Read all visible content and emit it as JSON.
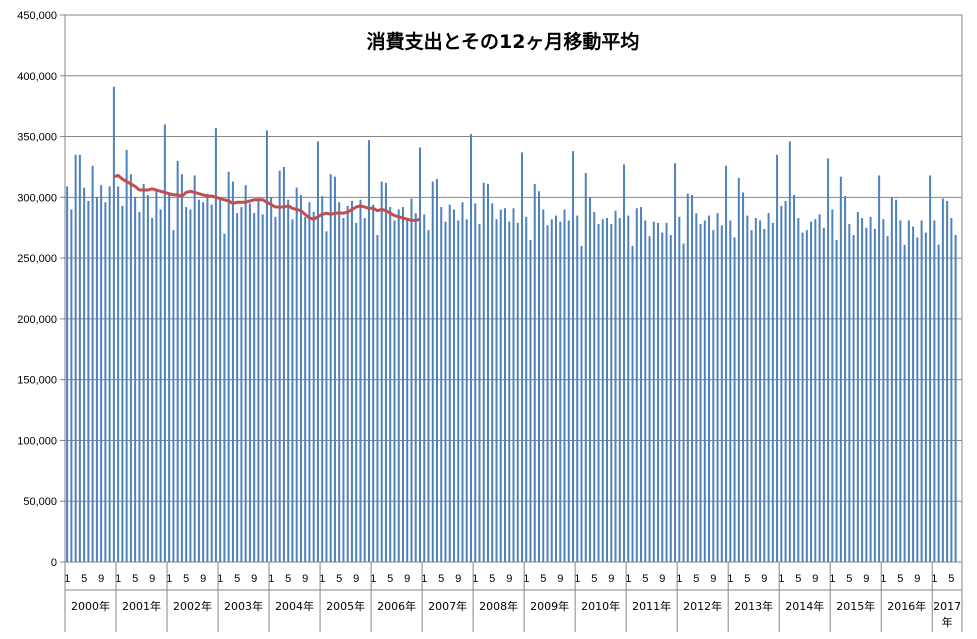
{
  "chart_data": {
    "type": "bar",
    "title": "消費支出とその12ヶ月移動平均",
    "xlabel": "",
    "ylabel": "",
    "ylim": [
      0,
      450000
    ],
    "y_ticks": [
      "0",
      "50,000",
      "100,000",
      "150,000",
      "200,000",
      "250,000",
      "300,000",
      "350,000",
      "400,000",
      "450,000"
    ],
    "grid": true,
    "legend": "none",
    "x_month_labels": [
      "1",
      "5",
      "9"
    ],
    "years": [
      "2000年",
      "2001年",
      "2002年",
      "2003年",
      "2004年",
      "2005年",
      "2006年",
      "2007年",
      "2008年",
      "2009年",
      "2010年",
      "2011年",
      "2012年",
      "2013年",
      "2014年",
      "2015年",
      "2016年",
      "2017年"
    ],
    "series": [
      {
        "kind": "bar",
        "color": "#4f81bd",
        "values": [
          309000,
          290000,
          335000,
          335000,
          308000,
          297000,
          326000,
          300000,
          310000,
          296000,
          309000,
          391000,
          309000,
          293000,
          339000,
          319000,
          300000,
          288000,
          311000,
          302000,
          283000,
          305000,
          290000,
          360000,
          304000,
          273000,
          330000,
          319000,
          292000,
          290000,
          318000,
          298000,
          296000,
          303000,
          294000,
          357000,
          298000,
          270000,
          321000,
          313000,
          287000,
          292000,
          310000,
          295000,
          287000,
          298000,
          286000,
          355000,
          300000,
          284000,
          322000,
          325000,
          298000,
          282000,
          308000,
          302000,
          284000,
          296000,
          288000,
          346000,
          301000,
          272000,
          319000,
          317000,
          296000,
          283000,
          293000,
          297000,
          279000,
          298000,
          283000,
          347000,
          294000,
          269000,
          313000,
          312000,
          292000,
          281000,
          290000,
          292000,
          282000,
          299000,
          287000,
          341000,
          286000,
          273000,
          313000,
          315000,
          292000,
          280000,
          294000,
          290000,
          281000,
          296000,
          282000,
          352000,
          295000,
          278000,
          312000,
          311000,
          295000,
          282000,
          290000,
          291000,
          280000,
          291000,
          279000,
          337000,
          284000,
          265000,
          311000,
          305000,
          290000,
          277000,
          282000,
          285000,
          280000,
          290000,
          281000,
          338000,
          285000,
          260000,
          320000,
          300000,
          288000,
          278000,
          282000,
          283000,
          278000,
          289000,
          283000,
          327000,
          285000,
          260000,
          291000,
          292000,
          281000,
          268000,
          280000,
          279000,
          271000,
          279000,
          269000,
          328000,
          284000,
          262000,
          303000,
          302000,
          287000,
          278000,
          281000,
          285000,
          273000,
          287000,
          277000,
          326000,
          281000,
          267000,
          316000,
          304000,
          285000,
          273000,
          283000,
          281000,
          274000,
          287000,
          279000,
          335000,
          293000,
          297000,
          346000,
          302000,
          283000,
          271000,
          273000,
          280000,
          282000,
          286000,
          275000,
          332000,
          290000,
          265000,
          317000,
          301000,
          278000,
          269000,
          288000,
          283000,
          275000,
          284000,
          274000,
          318000,
          282000,
          268000,
          300000,
          298000,
          281000,
          261000,
          281000,
          276000,
          267000,
          281000,
          271000,
          318000,
          281000,
          261000,
          299000,
          297000,
          283000,
          269000
        ]
      },
      {
        "kind": "line",
        "color": "#c0504d",
        "start_index": 11,
        "values": [
          317000,
          318000,
          315000,
          313000,
          311000,
          309000,
          306000,
          306000,
          306000,
          307000,
          306000,
          305000,
          304000,
          303000,
          302000,
          302000,
          301000,
          304000,
          305000,
          304000,
          303000,
          302000,
          301000,
          301000,
          300000,
          299000,
          298000,
          297000,
          295000,
          296000,
          296000,
          296000,
          297000,
          298000,
          298000,
          298000,
          296000,
          294000,
          292000,
          292000,
          292000,
          293000,
          291000,
          290000,
          289000,
          286000,
          283000,
          282000,
          284000,
          286000,
          287000,
          286000,
          287000,
          287000,
          287000,
          288000,
          290000,
          292000,
          293000,
          292000,
          291000,
          291000,
          289000,
          290000,
          289000,
          287000,
          285000,
          284000,
          283000,
          282000,
          281000,
          281000,
          282000
        ]
      }
    ]
  }
}
